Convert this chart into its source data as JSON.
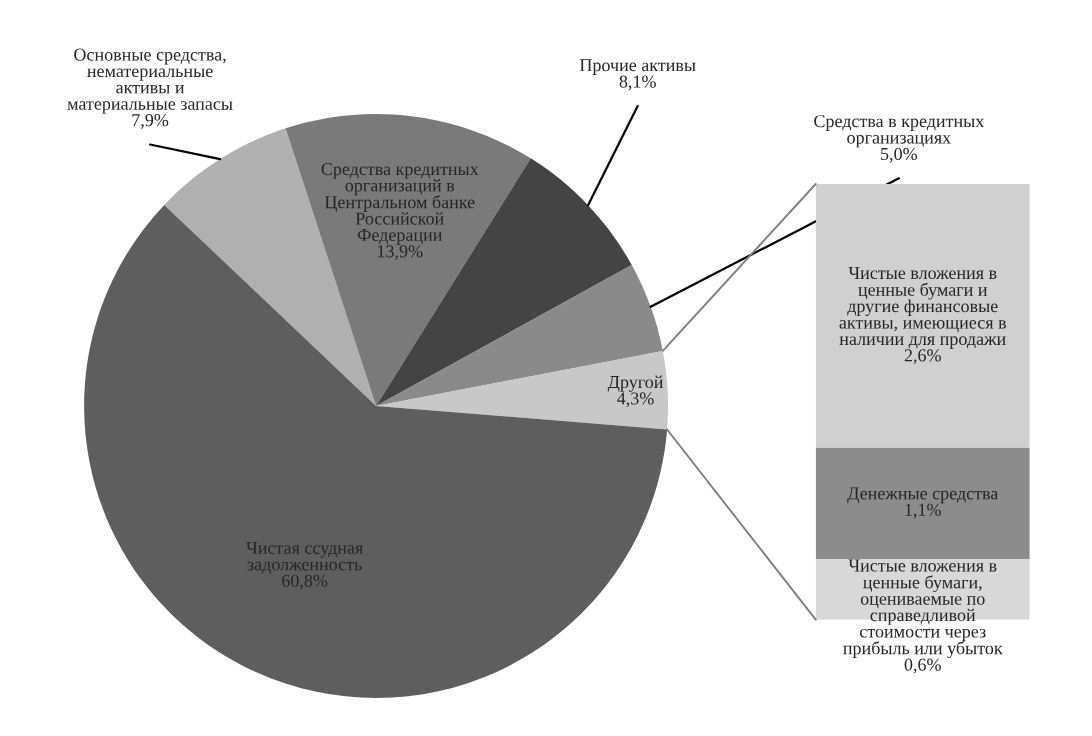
{
  "chart_data": [
    {
      "type": "pie",
      "categories": [
        "Основные средства,\nнематериальные\nактивы и\nматериальные запасы",
        "Средства кредитных\nорганизаций в\nЦентральном банке\nРоссийской\nФедерации",
        "Прочие активы",
        "Средства в кредитных\nорганизациях",
        "Другой",
        "Чистая ссудная\nзадолженность"
      ],
      "values": [
        7.9,
        13.9,
        8.1,
        5.0,
        4.3,
        60.8
      ],
      "value_labels": [
        "7,9%",
        "13,9%",
        "8,1%",
        "5,0%",
        "4,3%",
        "60,8%"
      ],
      "colors": [
        "#b0b0b0",
        "#7a7a7a",
        "#444444",
        "#8a8a8a",
        "#c8c8c8",
        "#5e5e5e"
      ]
    },
    {
      "type": "bar",
      "stacked": true,
      "categories": [
        null
      ],
      "series": [
        {
          "name": "Чистые вложения в\nценные бумаги,\nоцениваемые по\nсправедливой\nстоимости через\nприбыль или убыток",
          "color": "#d8d8d8",
          "values": [
            0.6
          ],
          "value_labels": [
            "0,6%"
          ]
        },
        {
          "name": "Денежные средства",
          "color": "#8c8c8c",
          "values": [
            1.1
          ],
          "value_labels": [
            "1,1%"
          ]
        },
        {
          "name": "Чистые вложения в\nценные бумаги и\nдругие финансовые\nактивы, имеющиеся в\nналичии для продажи",
          "color": "#d0d0d0",
          "values": [
            2.6
          ],
          "value_labels": [
            "2,6%"
          ]
        }
      ]
    }
  ]
}
